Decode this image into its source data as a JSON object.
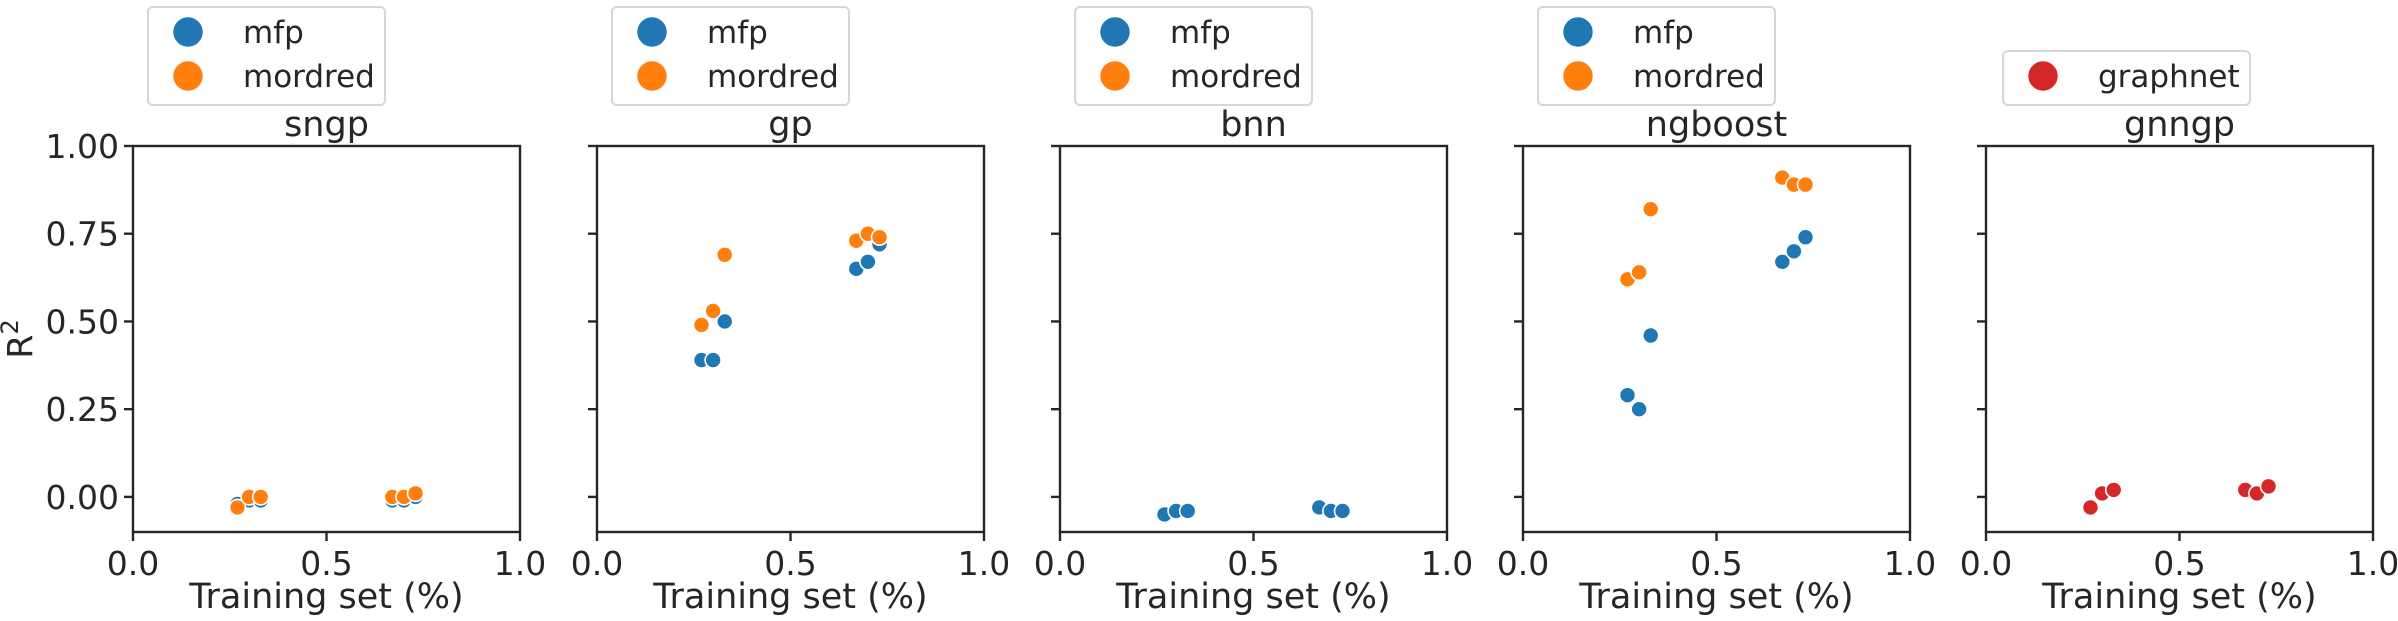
{
  "chart_data": [
    {
      "type": "scatter",
      "title": "sngp",
      "xlabel": "Training set (%)",
      "ylabel": "R^2",
      "xlim": [
        0.0,
        1.0
      ],
      "ylim": [
        -0.1,
        1.0
      ],
      "xticks": [
        "0.0",
        "0.5",
        "1.0"
      ],
      "yticks": [
        "0.00",
        "0.25",
        "0.50",
        "0.75",
        "1.00"
      ],
      "legend": {
        "position": "above",
        "entries": [
          "mfp",
          "mordred"
        ]
      },
      "series": [
        {
          "name": "mfp",
          "color": "#1f77b4",
          "x": [
            0.27,
            0.3,
            0.33,
            0.67,
            0.7,
            0.73
          ],
          "y": [
            -0.02,
            -0.01,
            -0.01,
            -0.01,
            -0.01,
            0.0
          ]
        },
        {
          "name": "mordred",
          "color": "#ff7f0e",
          "x": [
            0.27,
            0.3,
            0.33,
            0.67,
            0.7,
            0.73
          ],
          "y": [
            -0.03,
            0.0,
            0.0,
            0.0,
            0.0,
            0.01
          ]
        }
      ]
    },
    {
      "type": "scatter",
      "title": "gp",
      "xlabel": "Training set (%)",
      "xlim": [
        0.0,
        1.0
      ],
      "ylim": [
        -0.1,
        1.0
      ],
      "xticks": [
        "0.0",
        "0.5",
        "1.0"
      ],
      "legend": {
        "position": "above",
        "entries": [
          "mfp",
          "mordred"
        ]
      },
      "series": [
        {
          "name": "mfp",
          "color": "#1f77b4",
          "x": [
            0.27,
            0.3,
            0.33,
            0.67,
            0.7,
            0.73
          ],
          "y": [
            0.39,
            0.39,
            0.5,
            0.65,
            0.67,
            0.72
          ]
        },
        {
          "name": "mordred",
          "color": "#ff7f0e",
          "x": [
            0.27,
            0.3,
            0.33,
            0.67,
            0.7,
            0.73
          ],
          "y": [
            0.49,
            0.53,
            0.69,
            0.73,
            0.75,
            0.74
          ]
        }
      ]
    },
    {
      "type": "scatter",
      "title": "bnn",
      "xlabel": "Training set (%)",
      "xlim": [
        0.0,
        1.0
      ],
      "ylim": [
        -0.1,
        1.0
      ],
      "xticks": [
        "0.0",
        "0.5",
        "1.0"
      ],
      "legend": {
        "position": "above",
        "entries": [
          "mfp",
          "mordred"
        ]
      },
      "series": [
        {
          "name": "mfp",
          "color": "#1f77b4",
          "x": [
            0.27,
            0.3,
            0.33,
            0.67,
            0.7,
            0.73
          ],
          "y": [
            -0.05,
            -0.04,
            -0.04,
            -0.03,
            -0.04,
            -0.04
          ]
        },
        {
          "name": "mordred",
          "color": "#ff7f0e",
          "x": [],
          "y": []
        }
      ]
    },
    {
      "type": "scatter",
      "title": "ngboost",
      "xlabel": "Training set (%)",
      "xlim": [
        0.0,
        1.0
      ],
      "ylim": [
        -0.1,
        1.0
      ],
      "xticks": [
        "0.0",
        "0.5",
        "1.0"
      ],
      "legend": {
        "position": "above",
        "entries": [
          "mfp",
          "mordred"
        ]
      },
      "series": [
        {
          "name": "mfp",
          "color": "#1f77b4",
          "x": [
            0.27,
            0.3,
            0.33,
            0.67,
            0.7,
            0.73
          ],
          "y": [
            0.29,
            0.25,
            0.46,
            0.67,
            0.7,
            0.74
          ]
        },
        {
          "name": "mordred",
          "color": "#ff7f0e",
          "x": [
            0.27,
            0.3,
            0.33,
            0.67,
            0.7,
            0.73
          ],
          "y": [
            0.62,
            0.64,
            0.82,
            0.91,
            0.89,
            0.89
          ]
        }
      ]
    },
    {
      "type": "scatter",
      "title": "gnngp",
      "xlabel": "Training set (%)",
      "xlim": [
        0.0,
        1.0
      ],
      "ylim": [
        -0.1,
        1.0
      ],
      "xticks": [
        "0.0",
        "0.5",
        "1.0"
      ],
      "legend": {
        "position": "above",
        "entries": [
          "graphnet"
        ]
      },
      "series": [
        {
          "name": "graphnet",
          "color": "#d62728",
          "x": [
            0.27,
            0.3,
            0.33,
            0.67,
            0.7,
            0.73
          ],
          "y": [
            -0.03,
            0.01,
            0.02,
            0.02,
            0.01,
            0.03
          ]
        }
      ]
    }
  ]
}
